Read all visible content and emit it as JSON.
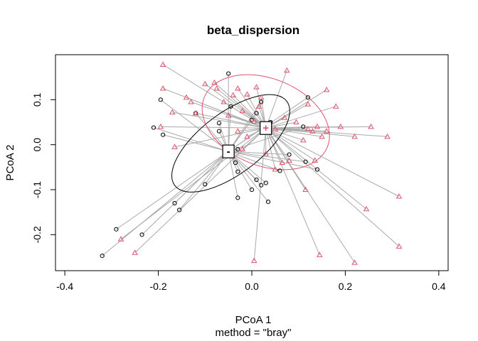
{
  "chart_data": {
    "type": "scatter",
    "title": "beta_dispersion",
    "xlabel": "PCoA 1",
    "ylabel": "PCoA 2",
    "sublabel": "method = \"bray\"",
    "xlim": [
      -0.42,
      0.42
    ],
    "ylim": [
      -0.28,
      0.2
    ],
    "x_ticks": [
      -0.4,
      -0.2,
      0.0,
      0.2,
      0.4
    ],
    "x_tick_labels": [
      "-0.4",
      "-0.2",
      "0.0",
      "0.2",
      "0.4"
    ],
    "y_ticks": [
      -0.2,
      -0.1,
      0.0,
      0.1
    ],
    "y_tick_labels": [
      "-0.2",
      "-0.1",
      "0.0",
      "0.1"
    ],
    "grid": false,
    "legend": "none",
    "segment_color": "#aaaaaa",
    "groups": [
      {
        "label": "-",
        "marker": "circle",
        "color": "#000000",
        "centroid": [
          -0.05,
          -0.015
        ],
        "ellipse": {
          "cx": -0.045,
          "cy": 0.003,
          "rx": 0.15,
          "ry": 0.068,
          "angle_deg": 37
        },
        "points": [
          [
            -0.32,
            -0.247
          ],
          [
            -0.29,
            -0.188
          ],
          [
            -0.235,
            -0.2
          ],
          [
            -0.165,
            -0.13
          ],
          [
            -0.155,
            -0.145
          ],
          [
            -0.1,
            -0.088
          ],
          [
            -0.195,
            0.1
          ],
          [
            -0.19,
            0.022
          ],
          [
            -0.21,
            0.038
          ],
          [
            -0.12,
            0.07
          ],
          [
            -0.07,
            0.048
          ],
          [
            -0.07,
            0.03
          ],
          [
            -0.05,
            0.158
          ],
          [
            -0.045,
            0.085
          ],
          [
            -0.03,
            -0.01
          ],
          [
            -0.035,
            -0.04
          ],
          [
            -0.03,
            -0.06
          ],
          [
            -0.03,
            -0.118
          ],
          [
            0.0,
            -0.1
          ],
          [
            0.01,
            -0.078
          ],
          [
            0.02,
            -0.09
          ],
          [
            0.03,
            -0.085
          ],
          [
            0.035,
            -0.127
          ],
          [
            0.04,
            0.05
          ],
          [
            0.02,
            0.095
          ],
          [
            0.06,
            -0.058
          ],
          [
            0.08,
            -0.022
          ],
          [
            0.11,
            0.04
          ],
          [
            0.115,
            -0.038
          ],
          [
            0.12,
            0.105
          ],
          [
            0.14,
            -0.055
          ],
          [
            0.01,
            0.07
          ],
          [
            0.0,
            0.055
          ]
        ]
      },
      {
        "label": "+",
        "marker": "triangle",
        "color": "#df536b",
        "centroid": [
          0.03,
          0.037
        ],
        "ellipse": {
          "cx": 0.03,
          "cy": 0.05,
          "rx": 0.142,
          "ry": 0.097,
          "angle_deg": -22
        },
        "points": [
          [
            -0.28,
            -0.21
          ],
          [
            -0.25,
            -0.24
          ],
          [
            -0.19,
            0.178
          ],
          [
            -0.19,
            0.125
          ],
          [
            -0.195,
            0.04
          ],
          [
            -0.17,
            0.072
          ],
          [
            -0.165,
            -0.005
          ],
          [
            -0.14,
            0.105
          ],
          [
            -0.13,
            0.095
          ],
          [
            -0.12,
            0.07
          ],
          [
            -0.1,
            0.135
          ],
          [
            -0.08,
            0.138
          ],
          [
            -0.075,
            0.125
          ],
          [
            -0.06,
            0.095
          ],
          [
            -0.04,
            0.11
          ],
          [
            -0.05,
            0.065
          ],
          [
            -0.03,
            0.125
          ],
          [
            -0.02,
            0.075
          ],
          [
            -0.03,
            0.03
          ],
          [
            -0.01,
            0.112
          ],
          [
            0.005,
            0.052
          ],
          [
            0.01,
            0.128
          ],
          [
            0.015,
            0.085
          ],
          [
            0.02,
            0.105
          ],
          [
            -0.01,
            0.018
          ],
          [
            -0.02,
            -0.01
          ],
          [
            0.03,
            -0.02
          ],
          [
            0.05,
            0.035
          ],
          [
            0.05,
            -0.055
          ],
          [
            0.065,
            -0.04
          ],
          [
            0.07,
            0.06
          ],
          [
            0.075,
            0.165
          ],
          [
            0.08,
            -0.035
          ],
          [
            0.095,
            0.05
          ],
          [
            0.11,
            0.01
          ],
          [
            0.115,
            -0.1
          ],
          [
            0.12,
            0.035
          ],
          [
            0.12,
            0.09
          ],
          [
            0.13,
            0.03
          ],
          [
            0.135,
            -0.035
          ],
          [
            0.14,
            0.04
          ],
          [
            0.15,
            0.018
          ],
          [
            0.16,
            0.122
          ],
          [
            0.16,
            0.03
          ],
          [
            0.18,
            0.085
          ],
          [
            0.19,
            0.04
          ],
          [
            0.22,
            0.018
          ],
          [
            0.245,
            -0.143
          ],
          [
            0.255,
            0.04
          ],
          [
            0.29,
            0.018
          ],
          [
            0.315,
            -0.115
          ],
          [
            0.315,
            -0.226
          ],
          [
            0.22,
            -0.262
          ],
          [
            0.145,
            -0.245
          ],
          [
            0.005,
            -0.258
          ]
        ]
      }
    ]
  }
}
